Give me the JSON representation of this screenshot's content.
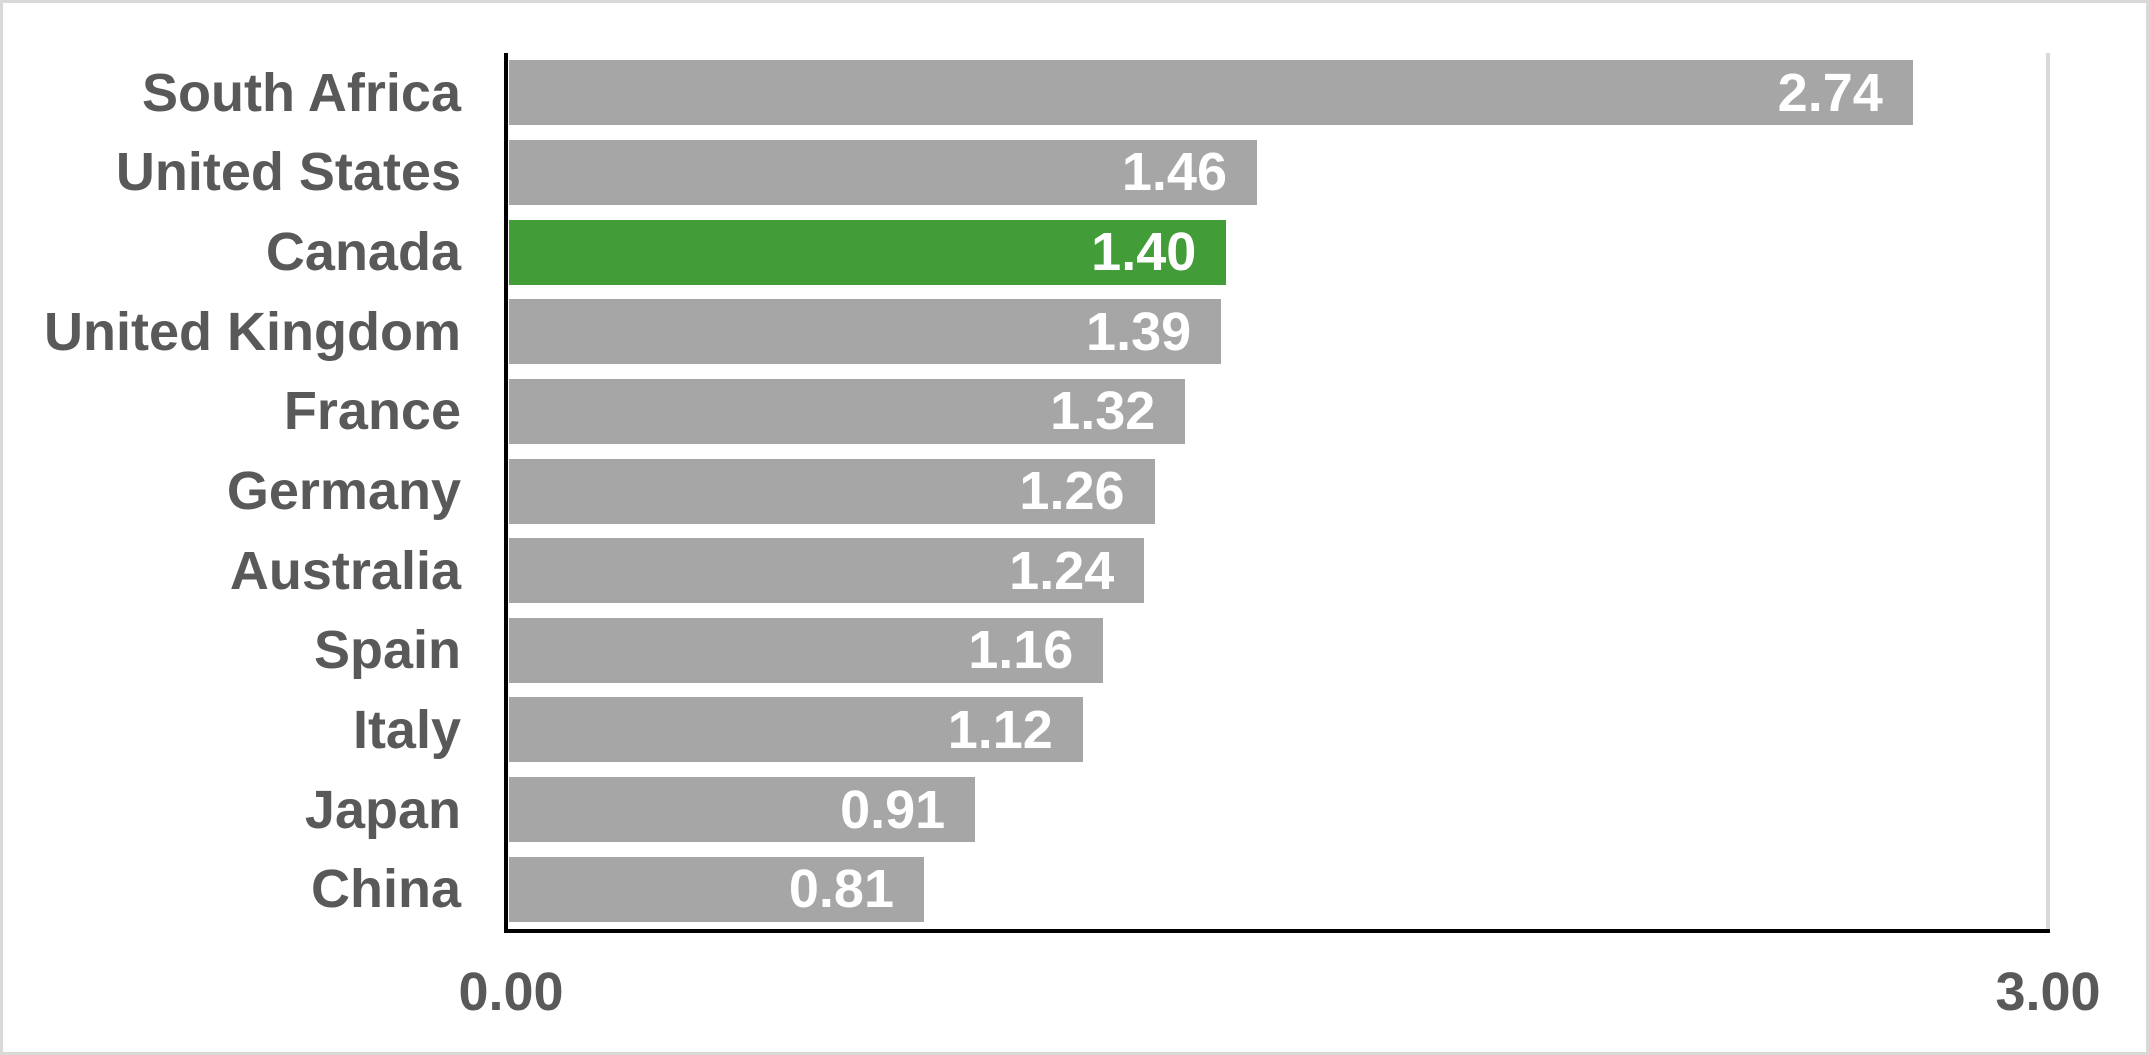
{
  "chart_data": {
    "type": "bar",
    "orientation": "horizontal",
    "title": "",
    "xlabel": "",
    "ylabel": "",
    "categories": [
      "South Africa",
      "United States",
      "Canada",
      "United Kingdom",
      "France",
      "Germany",
      "Australia",
      "Spain",
      "Italy",
      "Japan",
      "China"
    ],
    "values": [
      2.74,
      1.46,
      1.4,
      1.39,
      1.32,
      1.26,
      1.24,
      1.16,
      1.12,
      0.91,
      0.81
    ],
    "value_labels": [
      "2.74",
      "1.46",
      "1.40",
      "1.39",
      "1.32",
      "1.26",
      "1.24",
      "1.16",
      "1.12",
      "0.91",
      "0.81"
    ],
    "highlighted_category": "Canada",
    "highlight_index": 2,
    "xlim": [
      0,
      3
    ],
    "x_tick_labels": [
      "0.00",
      "3.00"
    ],
    "grid": "single vertical gridline at x=3.00",
    "legend_position": "none",
    "value_labels_position": "inside-end"
  },
  "colors": {
    "bar_default": "#A6A6A6",
    "bar_highlight": "#429C38",
    "category_label": "#595959",
    "tick_label": "#595959",
    "value_label": "#FFFFFF",
    "axis_line": "#000000",
    "gridline": "#D9D9D9",
    "canvas_border": "#D9D9D9",
    "background": "#FFFFFF"
  }
}
